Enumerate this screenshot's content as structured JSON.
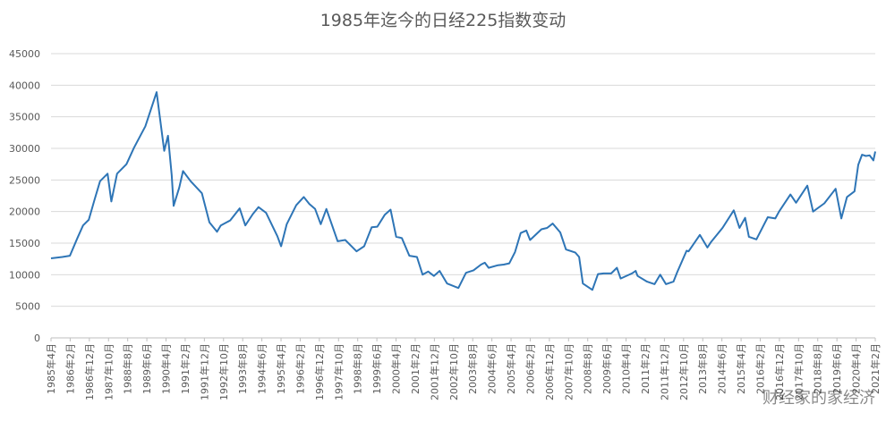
{
  "chart_data": {
    "type": "line",
    "title": "1985年迄今的日经225指数变动",
    "xlabel": "",
    "ylabel": "",
    "ylim": [
      0,
      45000
    ],
    "yticks": [
      0,
      5000,
      10000,
      15000,
      20000,
      25000,
      30000,
      35000,
      40000,
      45000
    ],
    "grid": true,
    "color": "#2e75b6",
    "x_tick_labels": [
      "1985年4月",
      "1986年2月",
      "1986年12月",
      "1987年10月",
      "1988年8月",
      "1989年6月",
      "1990年4月",
      "1991年2月",
      "1991年12月",
      "1992年10月",
      "1993年8月",
      "1994年6月",
      "1995年4月",
      "1996年2月",
      "1996年12月",
      "1997年10月",
      "1998年8月",
      "1999年6月",
      "2000年4月",
      "2001年2月",
      "2001年12月",
      "2002年10月",
      "2003年8月",
      "2004年6月",
      "2005年4月",
      "2006年2月",
      "2006年12月",
      "2007年10月",
      "2008年8月",
      "2009年6月",
      "2010年4月",
      "2011年2月",
      "2011年12月",
      "2012年10月",
      "2013年8月",
      "2014年6月",
      "2015年4月",
      "2016年2月",
      "2016年12月",
      "2017年10月",
      "2018年8月",
      "2019年6月",
      "2020年4月",
      "2021年2月"
    ],
    "series": [
      {
        "x": [
          "1985-04",
          "1985-10",
          "1986-02",
          "1986-06",
          "1986-09",
          "1986-12",
          "1987-03",
          "1987-06",
          "1987-10",
          "1987-12",
          "1988-03",
          "1988-08",
          "1988-12",
          "1989-06",
          "1989-12",
          "1990-04",
          "1990-06",
          "1990-08",
          "1990-09",
          "1990-12",
          "1991-02",
          "1991-06",
          "1991-12",
          "1992-04",
          "1992-08",
          "1992-10",
          "1993-03",
          "1993-08",
          "1993-11",
          "1994-03",
          "1994-06",
          "1994-10",
          "1995-04",
          "1995-06",
          "1995-09",
          "1996-02",
          "1996-06",
          "1996-09",
          "1996-12",
          "1997-03",
          "1997-06",
          "1997-10",
          "1997-12",
          "1998-04",
          "1998-08",
          "1998-10",
          "1999-02",
          "1999-06",
          "1999-09",
          "2000-01",
          "2000-04",
          "2000-07",
          "2000-10",
          "2001-02",
          "2001-06",
          "2001-09",
          "2001-12",
          "2002-03",
          "2002-06",
          "2002-10",
          "2003-04",
          "2003-08",
          "2003-12",
          "2004-04",
          "2004-06",
          "2004-08",
          "2005-01",
          "2005-04",
          "2005-07",
          "2005-10",
          "2006-01",
          "2006-04",
          "2006-06",
          "2006-12",
          "2007-03",
          "2007-06",
          "2007-10",
          "2008-01",
          "2008-06",
          "2008-08",
          "2008-10",
          "2009-03",
          "2009-06",
          "2009-09",
          "2010-01",
          "2010-04",
          "2010-06",
          "2010-12",
          "2011-02",
          "2011-03",
          "2011-08",
          "2011-12",
          "2012-03",
          "2012-06",
          "2012-10",
          "2012-12",
          "2013-05",
          "2013-06",
          "2013-12",
          "2014-04",
          "2014-06",
          "2014-12",
          "2015-06",
          "2015-09",
          "2015-12",
          "2016-02",
          "2016-06",
          "2016-12",
          "2017-04",
          "2017-06",
          "2017-12",
          "2018-03",
          "2018-09",
          "2018-12",
          "2019-06",
          "2019-12",
          "2020-03",
          "2020-06",
          "2020-10",
          "2020-12",
          "2021-02",
          "2021-04",
          "2021-06",
          "2021-08",
          "2021-09"
        ],
        "values": [
          12600,
          12800,
          13000,
          15800,
          17800,
          18700,
          21800,
          24800,
          26000,
          21600,
          26000,
          27500,
          30100,
          33500,
          38900,
          29600,
          32000,
          25700,
          20900,
          23800,
          26400,
          24800,
          22900,
          18300,
          16800,
          17800,
          18600,
          20500,
          17800,
          19600,
          20700,
          19800,
          16100,
          14500,
          18000,
          21000,
          22300,
          21200,
          20400,
          18000,
          20400,
          17000,
          15300,
          15500,
          14300,
          13700,
          14500,
          17500,
          17600,
          19500,
          20300,
          16000,
          15800,
          13000,
          12800,
          10000,
          10500,
          9800,
          10600,
          8600,
          7900,
          10300,
          10700,
          11600,
          11900,
          11100,
          11500,
          11600,
          11800,
          13600,
          16600,
          17000,
          15500,
          17200,
          17400,
          18100,
          16700,
          14000,
          13500,
          12800,
          8600,
          7600,
          10100,
          10200,
          10200,
          11100,
          9400,
          10200,
          10600,
          9800,
          8900,
          8500,
          10000,
          8500,
          8900,
          10400,
          13800,
          13700,
          16300,
          14300,
          15200,
          17400,
          20200,
          17400,
          19000,
          16000,
          15600,
          19100,
          18900,
          20000,
          22700,
          21400,
          24100,
          20000,
          21300,
          23600,
          18900,
          22300,
          23200,
          27400,
          29000,
          28800,
          28900,
          28100,
          29500
        ]
      }
    ]
  },
  "watermark": "财经家的家经济"
}
